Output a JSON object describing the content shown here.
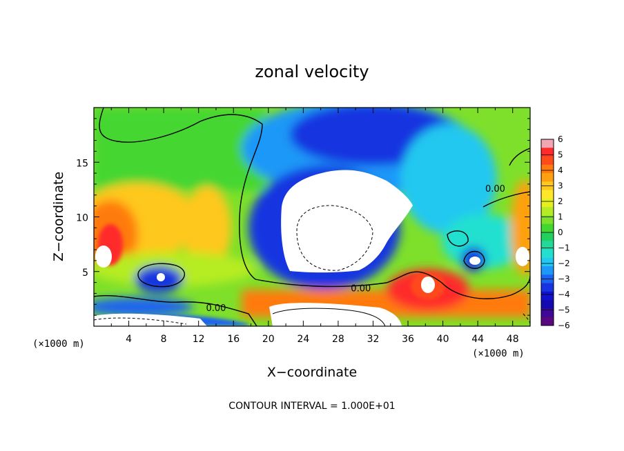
{
  "chart_data": {
    "type": "heatmap",
    "title": "zonal velocity",
    "xlabel": "X−coordinate",
    "ylabel": "Z−coordinate",
    "x_unit_left": "(×1000 m)",
    "x_unit_right": "(×1000 m)",
    "xlim": [
      0,
      50
    ],
    "ylim": [
      0,
      20
    ],
    "xticks": [
      4,
      8,
      12,
      16,
      20,
      24,
      28,
      32,
      36,
      40,
      44,
      48
    ],
    "yticks": [
      5,
      10,
      15
    ],
    "contour_interval_text": "CONTOUR INTERVAL = 1.000E+01",
    "contour_labels": [
      {
        "text": "0.00",
        "x": 14.0,
        "z": 1.4
      },
      {
        "text": "0.00",
        "x": 30.6,
        "z": 3.2
      },
      {
        "text": "0.00",
        "x": 46.0,
        "z": 12.3
      }
    ],
    "colorbar": {
      "min": -6,
      "max": 6,
      "tick_labels": [
        "6",
        "5",
        "4",
        "3",
        "2",
        "1",
        "0",
        "−1",
        "−2",
        "−3",
        "−4",
        "−5",
        "−6"
      ],
      "colors": [
        "#f2a6b4",
        "#ff2a2a",
        "#ff4a1a",
        "#ff7a10",
        "#ffa010",
        "#ffc81e",
        "#ffe82a",
        "#e6f020",
        "#b6ec24",
        "#7ee02a",
        "#44d630",
        "#22d060",
        "#22d89a",
        "#22e0d0",
        "#22c8f0",
        "#1c98f8",
        "#1a64f0",
        "#1834e0",
        "#1212cc",
        "#1608b0",
        "#3e0898",
        "#5a0880"
      ]
    }
  }
}
